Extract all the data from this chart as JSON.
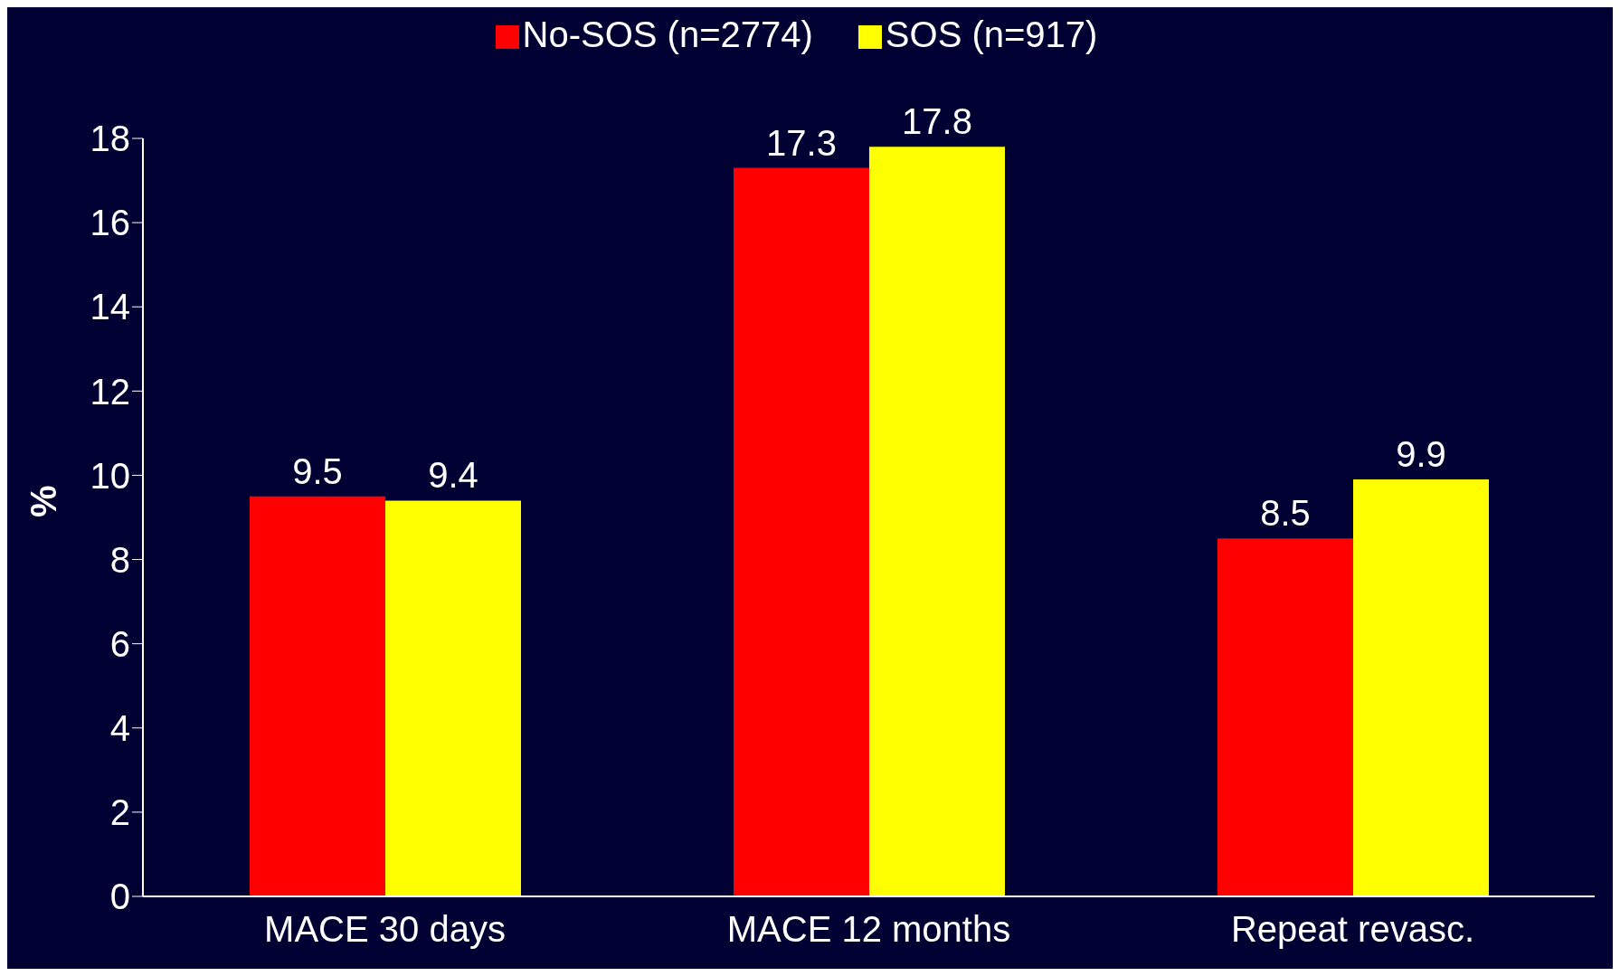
{
  "chart_data": {
    "type": "bar",
    "ylabel": "%",
    "categories": [
      "MACE 30 days",
      "MACE 12 months",
      "Repeat revasc."
    ],
    "series": [
      {
        "name": "No-SOS (n=2774)",
        "color": "#ff0000",
        "values": [
          9.5,
          17.3,
          8.5
        ]
      },
      {
        "name": "SOS (n=917)",
        "color": "#ffff00",
        "values": [
          9.4,
          17.8,
          9.9
        ]
      }
    ],
    "ylim": [
      0,
      18
    ],
    "yticks": [
      0,
      2,
      4,
      6,
      8,
      10,
      12,
      14,
      16,
      18
    ],
    "data_labels": true,
    "grid": false,
    "legend": "top"
  }
}
